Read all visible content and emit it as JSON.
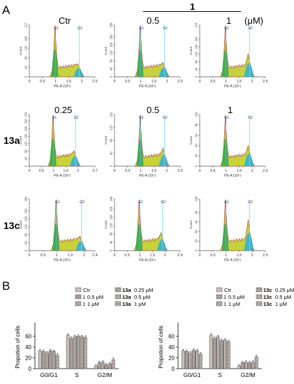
{
  "panel_a": {
    "letter": "A",
    "top_labels": {
      "ctr": "Ctr",
      "c1": "0.5",
      "c2": "1",
      "unit": "(μM)",
      "compound": "1"
    },
    "row_labels": {
      "r2": "13a",
      "r3": "13c"
    },
    "row2_col_labels": [
      "0.25",
      "0.5",
      "1"
    ],
    "g1_label": "G1",
    "g2_label": "G2",
    "count_label": "Count",
    "xaxis_label": "PE-A (10⁵)"
  },
  "panel_b": {
    "letter": "B",
    "ylabel": "Propotion of cells",
    "left_legend": [
      {
        "prefix": "",
        "text": "Ctr"
      },
      {
        "prefix": "1",
        "text": "0.5 μM"
      },
      {
        "prefix": "1",
        "text": "1 μM"
      },
      {
        "prefix": "13a",
        "text": "0.25 μM"
      },
      {
        "prefix": "13a",
        "text": "0.5 μM"
      },
      {
        "prefix": "13a",
        "text": "1 μM"
      }
    ],
    "right_legend": [
      {
        "prefix": "",
        "text": "Ctr"
      },
      {
        "prefix": "1",
        "text": "0.5 μM"
      },
      {
        "prefix": "1",
        "text": "1 μM"
      },
      {
        "prefix": "13c",
        "text": "0.25 μM"
      },
      {
        "prefix": "13c",
        "text": "0.5 μM"
      },
      {
        "prefix": "13c",
        "text": "1 μM"
      }
    ]
  },
  "chart_data": [
    {
      "type": "histogram_grid",
      "rows": [
        {
          "label": "",
          "panels": [
            {
              "ymax": 217,
              "yticks": [
                0,
                40,
                80,
                120,
                160,
                217
              ],
              "xmax": 2.5,
              "xticks": [
                0,
                0.5,
                1,
                1.5,
                2,
                2.5
              ],
              "g2": 0.25
            },
            {
              "ymax": 259,
              "yticks": [
                0,
                40,
                80,
                120,
                160,
                200,
                259
              ],
              "xmax": 2.5,
              "xticks": [
                0,
                0.5,
                1,
                1.5,
                2,
                2.5
              ],
              "g2": 0.28
            },
            {
              "ymax": 274,
              "yticks": [
                0,
                40,
                80,
                120,
                160,
                200,
                274
              ],
              "xmax": 2.5,
              "xticks": [
                0,
                0.5,
                1,
                1.5,
                2,
                2.5
              ],
              "g2": 0.45
            }
          ]
        },
        {
          "label": "13a",
          "panels": [
            {
              "ymax": 276,
              "yticks": [
                0,
                40,
                80,
                120,
                160,
                200,
                240,
                276
              ],
              "xmax": 2.7,
              "xticks": [
                0,
                0.5,
                1,
                1.5,
                2,
                2.7
              ],
              "g2": 0.3
            },
            {
              "ymax": 161,
              "yticks": [
                0,
                40,
                80,
                120,
                161
              ],
              "xmax": 2.5,
              "xticks": [
                0,
                0.5,
                1,
                1.5,
                2,
                2.5
              ],
              "g2": 0.35
            },
            {
              "ymax": 100,
              "yticks": [
                0,
                20,
                40,
                60,
                80,
                100
              ],
              "xmax": 2.5,
              "xticks": [
                0,
                0.5,
                1,
                1.5,
                2,
                2.5
              ],
              "g2": 0.4
            }
          ]
        },
        {
          "label": "13c",
          "panels": [
            {
              "ymax": 260,
              "yticks": [
                0,
                40,
                80,
                120,
                160,
                200,
                260
              ],
              "xmax": 2.4,
              "xticks": [
                0,
                0.5,
                1,
                1.5,
                2,
                2.4
              ],
              "g2": 0.28
            },
            {
              "ymax": 248,
              "yticks": [
                0,
                40,
                80,
                120,
                160,
                200,
                248
              ],
              "xmax": 2.6,
              "xticks": [
                0,
                0.5,
                1,
                1.5,
                2,
                2.6
              ],
              "g2": 0.35
            },
            {
              "ymax": 108,
              "yticks": [
                0,
                20,
                40,
                60,
                80,
                108
              ],
              "xmax": 2.5,
              "xticks": [
                0,
                0.5,
                1,
                1.5,
                2,
                2.5
              ],
              "g2": 0.6
            }
          ]
        }
      ]
    },
    {
      "type": "bar",
      "title": "",
      "ylabel": "Propotion of cells",
      "ylim": [
        0,
        80
      ],
      "yticks": [
        0,
        20,
        40,
        60
      ],
      "categories": [
        "G0/G1",
        "S",
        "G2/M"
      ],
      "series": [
        {
          "name": "Ctr",
          "values": [
            33,
            62,
            5
          ]
        },
        {
          "name": "1 0.5 μM",
          "values": [
            32,
            56,
            11
          ]
        },
        {
          "name": "1 1 μM",
          "values": [
            29,
            59,
            12
          ]
        },
        {
          "name": "13a 0.25 μM",
          "values": [
            33,
            60,
            7
          ]
        },
        {
          "name": "13a 0.5 μM",
          "values": [
            32,
            59,
            9
          ]
        },
        {
          "name": "13a 1 μM",
          "values": [
            25,
            58,
            17
          ]
        }
      ]
    },
    {
      "type": "bar",
      "title": "",
      "ylabel": "Propotion of cells",
      "ylim": [
        0,
        80
      ],
      "yticks": [
        0,
        20,
        40,
        60
      ],
      "categories": [
        "G0/G1",
        "S",
        "G2/M"
      ],
      "series": [
        {
          "name": "Ctr",
          "values": [
            33,
            62,
            5
          ]
        },
        {
          "name": "1 0.5 μM",
          "values": [
            32,
            56,
            11
          ]
        },
        {
          "name": "1 1 μM",
          "values": [
            29,
            59,
            12
          ]
        },
        {
          "name": "13c 0.25 μM",
          "values": [
            34,
            52,
            11
          ]
        },
        {
          "name": "13c 0.5 μM",
          "values": [
            33,
            53,
            12
          ]
        },
        {
          "name": "13c 1 μM",
          "values": [
            27,
            50,
            22
          ]
        }
      ]
    }
  ],
  "colors": {
    "bar_fill": "#c8beb8",
    "hist_fill": "#c8d23a",
    "g1_fill": "#3aa84a",
    "g2_fill": "#2ab0d8",
    "g1_line": "#5ab0ff",
    "g2_line": "#7fd4ff",
    "s_line": "#a83c3c",
    "outline": "#333333"
  }
}
